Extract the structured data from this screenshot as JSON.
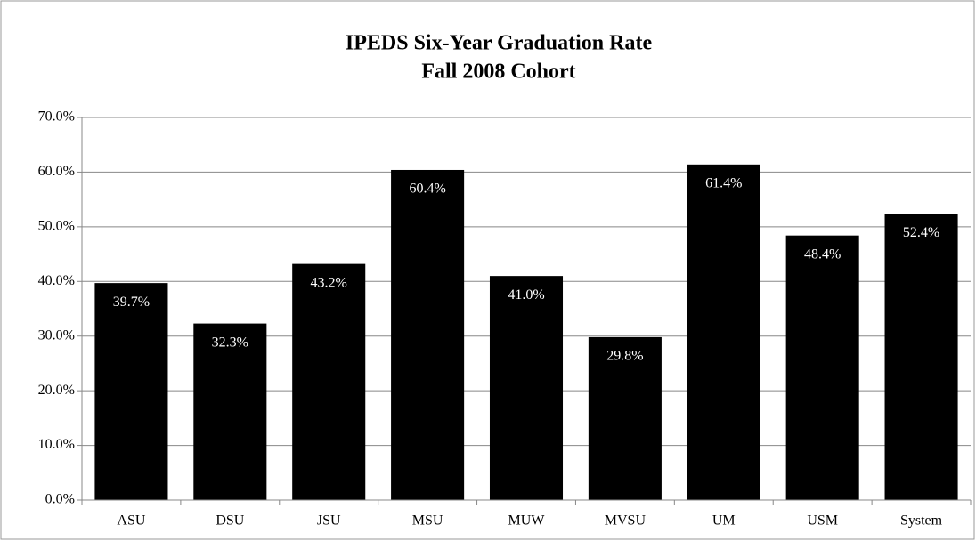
{
  "chart_data": {
    "type": "bar",
    "title": "IPEDS Six-Year Graduation Rate",
    "subtitle": "Fall 2008 Cohort",
    "categories": [
      "ASU",
      "DSU",
      "JSU",
      "MSU",
      "MUW",
      "MVSU",
      "UM",
      "USM",
      "System"
    ],
    "values": [
      39.7,
      32.3,
      43.2,
      60.4,
      41.0,
      29.8,
      61.4,
      48.4,
      52.4
    ],
    "value_labels": [
      "39.7%",
      "32.3%",
      "43.2%",
      "60.4%",
      "41.0%",
      "29.8%",
      "61.4%",
      "48.4%",
      "52.4%"
    ],
    "color": "#000000",
    "ylim": [
      0,
      70
    ],
    "yticks": [
      {
        "value": 0,
        "label": "0.0%"
      },
      {
        "value": 10,
        "label": "10.0%"
      },
      {
        "value": 20,
        "label": "20.0%"
      },
      {
        "value": 30,
        "label": "30.0%"
      },
      {
        "value": 40,
        "label": "40.0%"
      },
      {
        "value": 50,
        "label": "50.0%"
      },
      {
        "value": 60,
        "label": "60.0%"
      },
      {
        "value": 70,
        "label": "70.0%"
      }
    ],
    "grid": true
  }
}
